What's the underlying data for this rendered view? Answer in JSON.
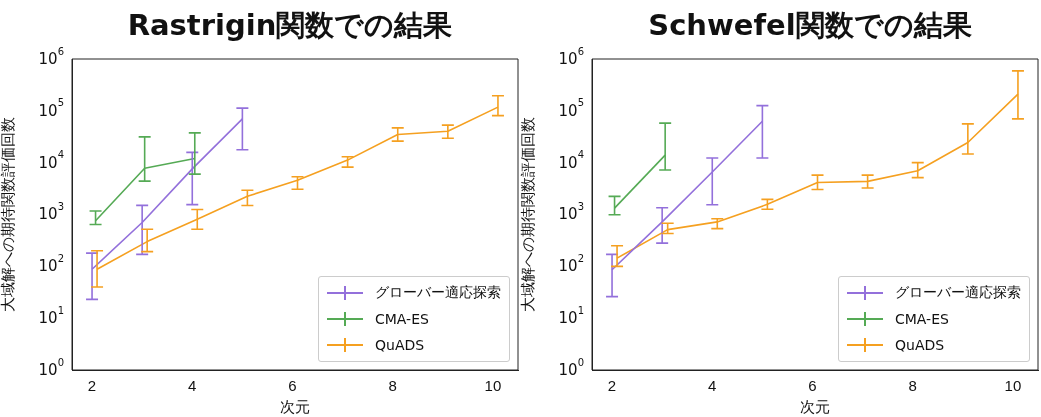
{
  "chart_data": [
    {
      "type": "line",
      "title": "Rastrigin関数での結果",
      "xlabel": "次元",
      "ylabel": "大域解への期待関数評価回数",
      "log": "y",
      "grid": false,
      "legend": "bottom right",
      "line_style": "solid",
      "xlim": [
        1.6,
        10.5
      ],
      "xticks": [
        2,
        4,
        6,
        8,
        10
      ],
      "ylim": [
        1,
        1000000
      ],
      "yticks": [
        {
          "value": 1,
          "label": "10$^{0}$"
        },
        {
          "value": 10,
          "label": "10$^{1}$"
        },
        {
          "value": 100,
          "label": "10$^{2}$"
        },
        {
          "value": 1000,
          "label": "10$^{3}$"
        },
        {
          "value": 10000,
          "label": "10$^{4}$"
        },
        {
          "value": 100000,
          "label": "10$^{5}$"
        },
        {
          "value": 1000000,
          "label": "10$^{6}$"
        }
      ],
      "series": [
        {
          "name": "グローバー適応探索",
          "color": "#9370db",
          "x": [
            2,
            3,
            4,
            5
          ],
          "values": [
            88,
            700,
            7600,
            70000
          ],
          "errors": [
            [
              23,
              180
            ],
            [
              170,
              1500
            ],
            [
              1550,
              15800
            ],
            [
              17700,
              113000
            ]
          ]
        },
        {
          "name": "CMA-ES",
          "color": "#55aa55",
          "x": [
            2.07,
            3.05,
            4.05
          ],
          "values": [
            760,
            7800,
            12000
          ],
          "errors": [
            [
              640,
              1170
            ],
            [
              4400,
              31500
            ],
            [
              6000,
              37500
            ]
          ]
        },
        {
          "name": "QuADS",
          "color": "#f5a020",
          "x": [
            2.1,
            3.1,
            4.1,
            5.1,
            6.1,
            7.1,
            8.1,
            9.1,
            10.1
          ],
          "values": [
            88,
            300,
            810,
            2240,
            4600,
            11200,
            35000,
            40500,
            118000
          ],
          "errors": [
            [
              40,
              200
            ],
            [
              192,
              520
            ],
            [
              520,
              1250
            ],
            [
              1490,
              2930
            ],
            [
              3080,
              5350
            ],
            [
              8200,
              13000
            ],
            [
              26000,
              47000
            ],
            [
              29500,
              53000
            ],
            [
              81000,
              196000
            ]
          ]
        }
      ]
    },
    {
      "type": "line",
      "title": "Schwefel関数での結果",
      "xlabel": "次元",
      "ylabel": "大域解への期待関数評価回数",
      "log": "y",
      "grid": false,
      "legend": "bottom right",
      "line_style": "solid",
      "xlim": [
        1.6,
        10.5
      ],
      "xticks": [
        2,
        4,
        6,
        8,
        10
      ],
      "ylim": [
        1,
        1000000
      ],
      "yticks": [
        {
          "value": 1,
          "label": "10$^{0}$"
        },
        {
          "value": 10,
          "label": "10$^{1}$"
        },
        {
          "value": 100,
          "label": "10$^{2}$"
        },
        {
          "value": 1000,
          "label": "10$^{3}$"
        },
        {
          "value": 10000,
          "label": "10$^{4}$"
        },
        {
          "value": 100000,
          "label": "10$^{5}$"
        },
        {
          "value": 1000000,
          "label": "10$^{6}$"
        }
      ],
      "series": [
        {
          "name": "グローバー適応探索",
          "color": "#9370db",
          "x": [
            2,
            3,
            4,
            5
          ],
          "values": [
            86,
            720,
            6600,
            63000
          ],
          "errors": [
            [
              26,
              170
            ],
            [
              280,
              1350
            ],
            [
              1540,
              12300
            ],
            [
              12300,
              126000
            ]
          ]
        },
        {
          "name": "CMA-ES",
          "color": "#55aa55",
          "x": [
            2.05,
            3.06
          ],
          "values": [
            1330,
            14000
          ],
          "errors": [
            [
              990,
              2240
            ],
            [
              7200,
              58000
            ]
          ]
        },
        {
          "name": "QuADS",
          "color": "#f5a020",
          "x": [
            2.1,
            3.11,
            4.1,
            5.1,
            6.1,
            7.1,
            8.1,
            9.1,
            10.1
          ],
          "values": [
            144,
            510,
            720,
            1570,
            4150,
            4350,
            7000,
            24500,
            210000
          ],
          "errors": [
            [
              100,
              250
            ],
            [
              430,
              680
            ],
            [
              535,
              830
            ],
            [
              1260,
              1960
            ],
            [
              3030,
              5750
            ],
            [
              3250,
              5750
            ],
            [
              5150,
              10000
            ],
            [
              14700,
              56000
            ],
            [
              70000,
              590000
            ]
          ]
        }
      ]
    }
  ]
}
